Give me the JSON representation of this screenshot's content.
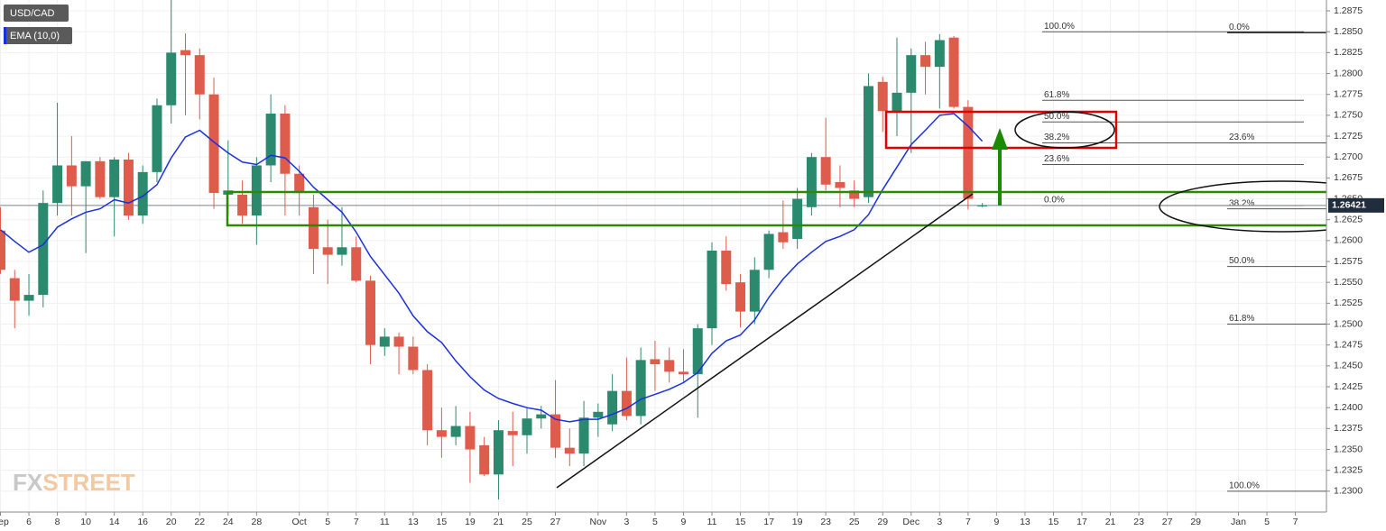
{
  "chart_data": {
    "type": "candlestick",
    "categories": [
      "Sep",
      null,
      "6",
      null,
      "8",
      null,
      "10",
      null,
      "14",
      null,
      "16",
      null,
      "20",
      null,
      "22",
      null,
      "24",
      null,
      "28",
      null,
      null,
      "Oct",
      null,
      "5",
      null,
      "7",
      null,
      "11",
      null,
      "13",
      null,
      "15",
      null,
      "19",
      null,
      "21",
      null,
      "25",
      null,
      "27",
      null,
      null,
      "Nov",
      null,
      "3",
      null,
      "5",
      null,
      "9",
      null,
      "11",
      null,
      "15",
      null,
      "17",
      null,
      "19",
      null,
      "23",
      null,
      "25",
      null,
      "29",
      null,
      "Dec",
      null,
      "3",
      null,
      "7",
      null,
      "9",
      null,
      "13",
      null,
      "15",
      null,
      "17",
      null,
      "21",
      null,
      "23",
      null,
      "27",
      null,
      "29",
      null,
      null,
      "Jan",
      null,
      "5",
      null,
      "7"
    ],
    "series": [
      {
        "name": "USD/CAD",
        "type": "candlestick",
        "up_color": "#2b8a6e",
        "down_color": "#dd5c4c",
        "open": [
          1.2612,
          1.2555,
          1.2528,
          1.2535,
          1.2645,
          1.269,
          1.2665,
          1.2695,
          1.2652,
          1.2697,
          1.263,
          1.2682,
          1.2762,
          1.2828,
          1.2822,
          1.2775,
          1.2655,
          1.2655,
          1.263,
          1.269,
          1.2752,
          1.268,
          1.264,
          1.2592,
          1.2583,
          1.2592,
          1.2552,
          1.2473,
          1.2485,
          1.2473,
          1.2445,
          1.2373,
          1.2365,
          1.2378,
          1.2355,
          1.232,
          1.2372,
          1.2367,
          1.2387,
          1.2392,
          1.2352,
          1.2345,
          1.2388,
          1.238,
          1.242,
          1.239,
          1.2458,
          1.2457,
          1.2443,
          1.244,
          1.2495,
          1.2588,
          1.255,
          1.2515,
          1.2565,
          1.261,
          1.2602,
          1.264,
          1.27,
          1.267,
          1.266,
          1.2652,
          1.279,
          1.2755,
          1.2777,
          1.2822,
          1.2808,
          1.2843,
          1.276,
          1.2642,
          null,
          null,
          null,
          null,
          null,
          null,
          null,
          null,
          null,
          null,
          null,
          null,
          null,
          null,
          null,
          null,
          null,
          null,
          null,
          null,
          null,
          null
        ],
        "high": [
          1.264,
          1.2565,
          1.256,
          1.266,
          1.2765,
          1.2725,
          1.2695,
          1.27,
          1.27,
          1.2705,
          1.269,
          1.277,
          1.2888,
          1.2848,
          1.283,
          1.2795,
          1.272,
          1.2672,
          1.27,
          1.2775,
          1.2762,
          1.269,
          1.2655,
          1.2625,
          1.264,
          1.2605,
          1.2558,
          1.2495,
          1.249,
          1.2485,
          1.2452,
          1.24,
          1.2402,
          1.2395,
          1.2365,
          1.2385,
          1.2395,
          1.24,
          1.2402,
          1.2433,
          1.2375,
          1.2408,
          1.2405,
          1.244,
          1.246,
          1.2472,
          1.248,
          1.2472,
          1.247,
          1.25,
          1.2598,
          1.2605,
          1.256,
          1.258,
          1.2612,
          1.2648,
          1.2663,
          1.2705,
          1.2747,
          1.269,
          1.2672,
          1.28,
          1.2796,
          1.2843,
          1.283,
          1.2838,
          1.2847,
          1.2845,
          1.2768,
          1.2645,
          null,
          null,
          null,
          null,
          null,
          null,
          null,
          null,
          null,
          null,
          null,
          null,
          null,
          null,
          null,
          null,
          null,
          null,
          null,
          null,
          null,
          null
        ],
        "low": [
          1.256,
          1.2495,
          1.251,
          1.252,
          1.263,
          1.263,
          1.2585,
          1.265,
          1.2605,
          1.2625,
          1.262,
          1.267,
          1.274,
          1.275,
          1.2745,
          1.2638,
          1.263,
          1.262,
          1.2595,
          1.267,
          1.263,
          1.263,
          1.256,
          1.2548,
          1.257,
          1.255,
          1.2452,
          1.2462,
          1.244,
          1.244,
          1.2355,
          1.234,
          1.2355,
          1.231,
          1.2318,
          1.229,
          1.233,
          1.2345,
          1.2375,
          1.234,
          1.233,
          1.233,
          1.2365,
          1.2372,
          1.2385,
          1.238,
          1.242,
          1.243,
          1.243,
          1.2388,
          1.2475,
          1.254,
          1.2496,
          1.25,
          1.2555,
          1.259,
          1.259,
          1.263,
          1.266,
          1.264,
          1.264,
          1.2645,
          1.273,
          1.2725,
          1.2705,
          1.2775,
          1.2758,
          1.2758,
          1.2637,
          1.264,
          null,
          null,
          null,
          null,
          null,
          null,
          null,
          null,
          null,
          null,
          null,
          null,
          null,
          null,
          null,
          null,
          null,
          null,
          null,
          null,
          null,
          null
        ],
        "close": [
          1.2565,
          1.2528,
          1.2535,
          1.2645,
          1.269,
          1.2665,
          1.2695,
          1.2652,
          1.2697,
          1.263,
          1.2682,
          1.2762,
          1.2825,
          1.2822,
          1.2775,
          1.2657,
          1.266,
          1.263,
          1.269,
          1.2752,
          1.268,
          1.2657,
          1.259,
          1.2583,
          1.2592,
          1.2552,
          1.2475,
          1.2485,
          1.2473,
          1.2445,
          1.2373,
          1.2365,
          1.2378,
          1.235,
          1.232,
          1.2373,
          1.2367,
          1.2387,
          1.2392,
          1.2352,
          1.2345,
          1.2388,
          1.2395,
          1.242,
          1.239,
          1.2457,
          1.2452,
          1.2443,
          1.244,
          1.2495,
          1.2588,
          1.2548,
          1.2515,
          1.2565,
          1.2608,
          1.2598,
          1.265,
          1.27,
          1.2667,
          1.2663,
          1.265,
          1.2785,
          1.2755,
          1.2777,
          1.2822,
          1.2808,
          1.284,
          1.276,
          1.265,
          1.2642,
          null,
          null,
          null,
          null,
          null,
          null,
          null,
          null,
          null,
          null,
          null,
          null,
          null,
          null,
          null,
          null,
          null,
          null,
          null,
          null,
          null,
          null
        ]
      },
      {
        "name": "EMA (10,0)",
        "type": "line",
        "color": "#1a2fe0",
        "values": [
          1.2613,
          1.2599,
          1.2586,
          1.2595,
          1.2616,
          1.2626,
          1.2634,
          1.2638,
          1.2649,
          1.2645,
          1.2653,
          1.2667,
          1.2699,
          1.2724,
          1.2732,
          1.2718,
          1.2705,
          1.2694,
          1.2691,
          1.2702,
          1.2699,
          1.2683,
          1.2664,
          1.2649,
          1.2634,
          1.261,
          1.2581,
          1.2559,
          1.2537,
          1.251,
          1.2491,
          1.2478,
          1.2456,
          1.2437,
          1.2421,
          1.2411,
          1.2405,
          1.24,
          1.2397,
          1.2386,
          1.2383,
          1.2386,
          1.2386,
          1.2392,
          1.2399,
          1.241,
          1.2416,
          1.2422,
          1.243,
          1.2442,
          1.2465,
          1.248,
          1.2487,
          1.2505,
          1.2532,
          1.2554,
          1.2572,
          1.2586,
          1.2599,
          1.2605,
          1.2613,
          1.2631,
          1.2661,
          1.2688,
          1.2715,
          1.2732,
          1.275,
          1.2752,
          1.2737,
          1.2719,
          null,
          null,
          null,
          null,
          null,
          null,
          null,
          null,
          null,
          null,
          null,
          null,
          null,
          null,
          null,
          null,
          null,
          null,
          null,
          null,
          null,
          null
        ]
      }
    ],
    "ylim": [
      1.2275,
      1.2888
    ],
    "yticks": [
      {
        "value": 1.23,
        "label": "1.2300"
      },
      1.2325,
      {
        "value": 1.235,
        "label": "1.2350"
      },
      1.2375,
      {
        "value": 1.24,
        "label": "1.2400"
      },
      1.2425,
      {
        "value": 1.245,
        "label": "1.2450"
      },
      1.2475,
      {
        "value": 1.25,
        "label": "1.2500"
      },
      1.2525,
      {
        "value": 1.255,
        "label": "1.2550"
      },
      1.2575,
      {
        "value": 1.26,
        "label": "1.2600"
      },
      1.2625,
      {
        "value": 1.265,
        "label": "1.2650"
      },
      1.2675,
      {
        "value": 1.27,
        "label": "1.2700"
      },
      1.2725,
      {
        "value": 1.275,
        "label": "1.2750"
      },
      1.2775,
      {
        "value": 1.28,
        "label": "1.2800"
      },
      1.2825,
      {
        "value": 1.285,
        "label": "1.2850"
      },
      1.2875
    ],
    "grid": true,
    "last_price": 1.26421,
    "fib_left": [
      {
        "label": "100.0%",
        "value": 1.285
      },
      {
        "label": "61.8%",
        "value": 1.2768
      },
      {
        "label": "50.0%",
        "value": 1.2742
      },
      {
        "label": "38.2%",
        "value": 1.2717
      },
      {
        "label": "23.6%",
        "value": 1.2691
      },
      {
        "label": "0.0%",
        "value": 1.2642
      }
    ],
    "fib_right": [
      {
        "label": "0.0%",
        "value": 1.2849
      },
      {
        "label": "23.6%",
        "value": 1.2717
      },
      {
        "label": "38.2%",
        "value": 1.2638
      },
      {
        "label": "50.0%",
        "value": 1.2569
      },
      {
        "label": "61.8%",
        "value": 1.25
      },
      {
        "label": "100.0%",
        "value": 1.23
      }
    ],
    "watermark": [
      "FX",
      "STREET"
    ]
  }
}
